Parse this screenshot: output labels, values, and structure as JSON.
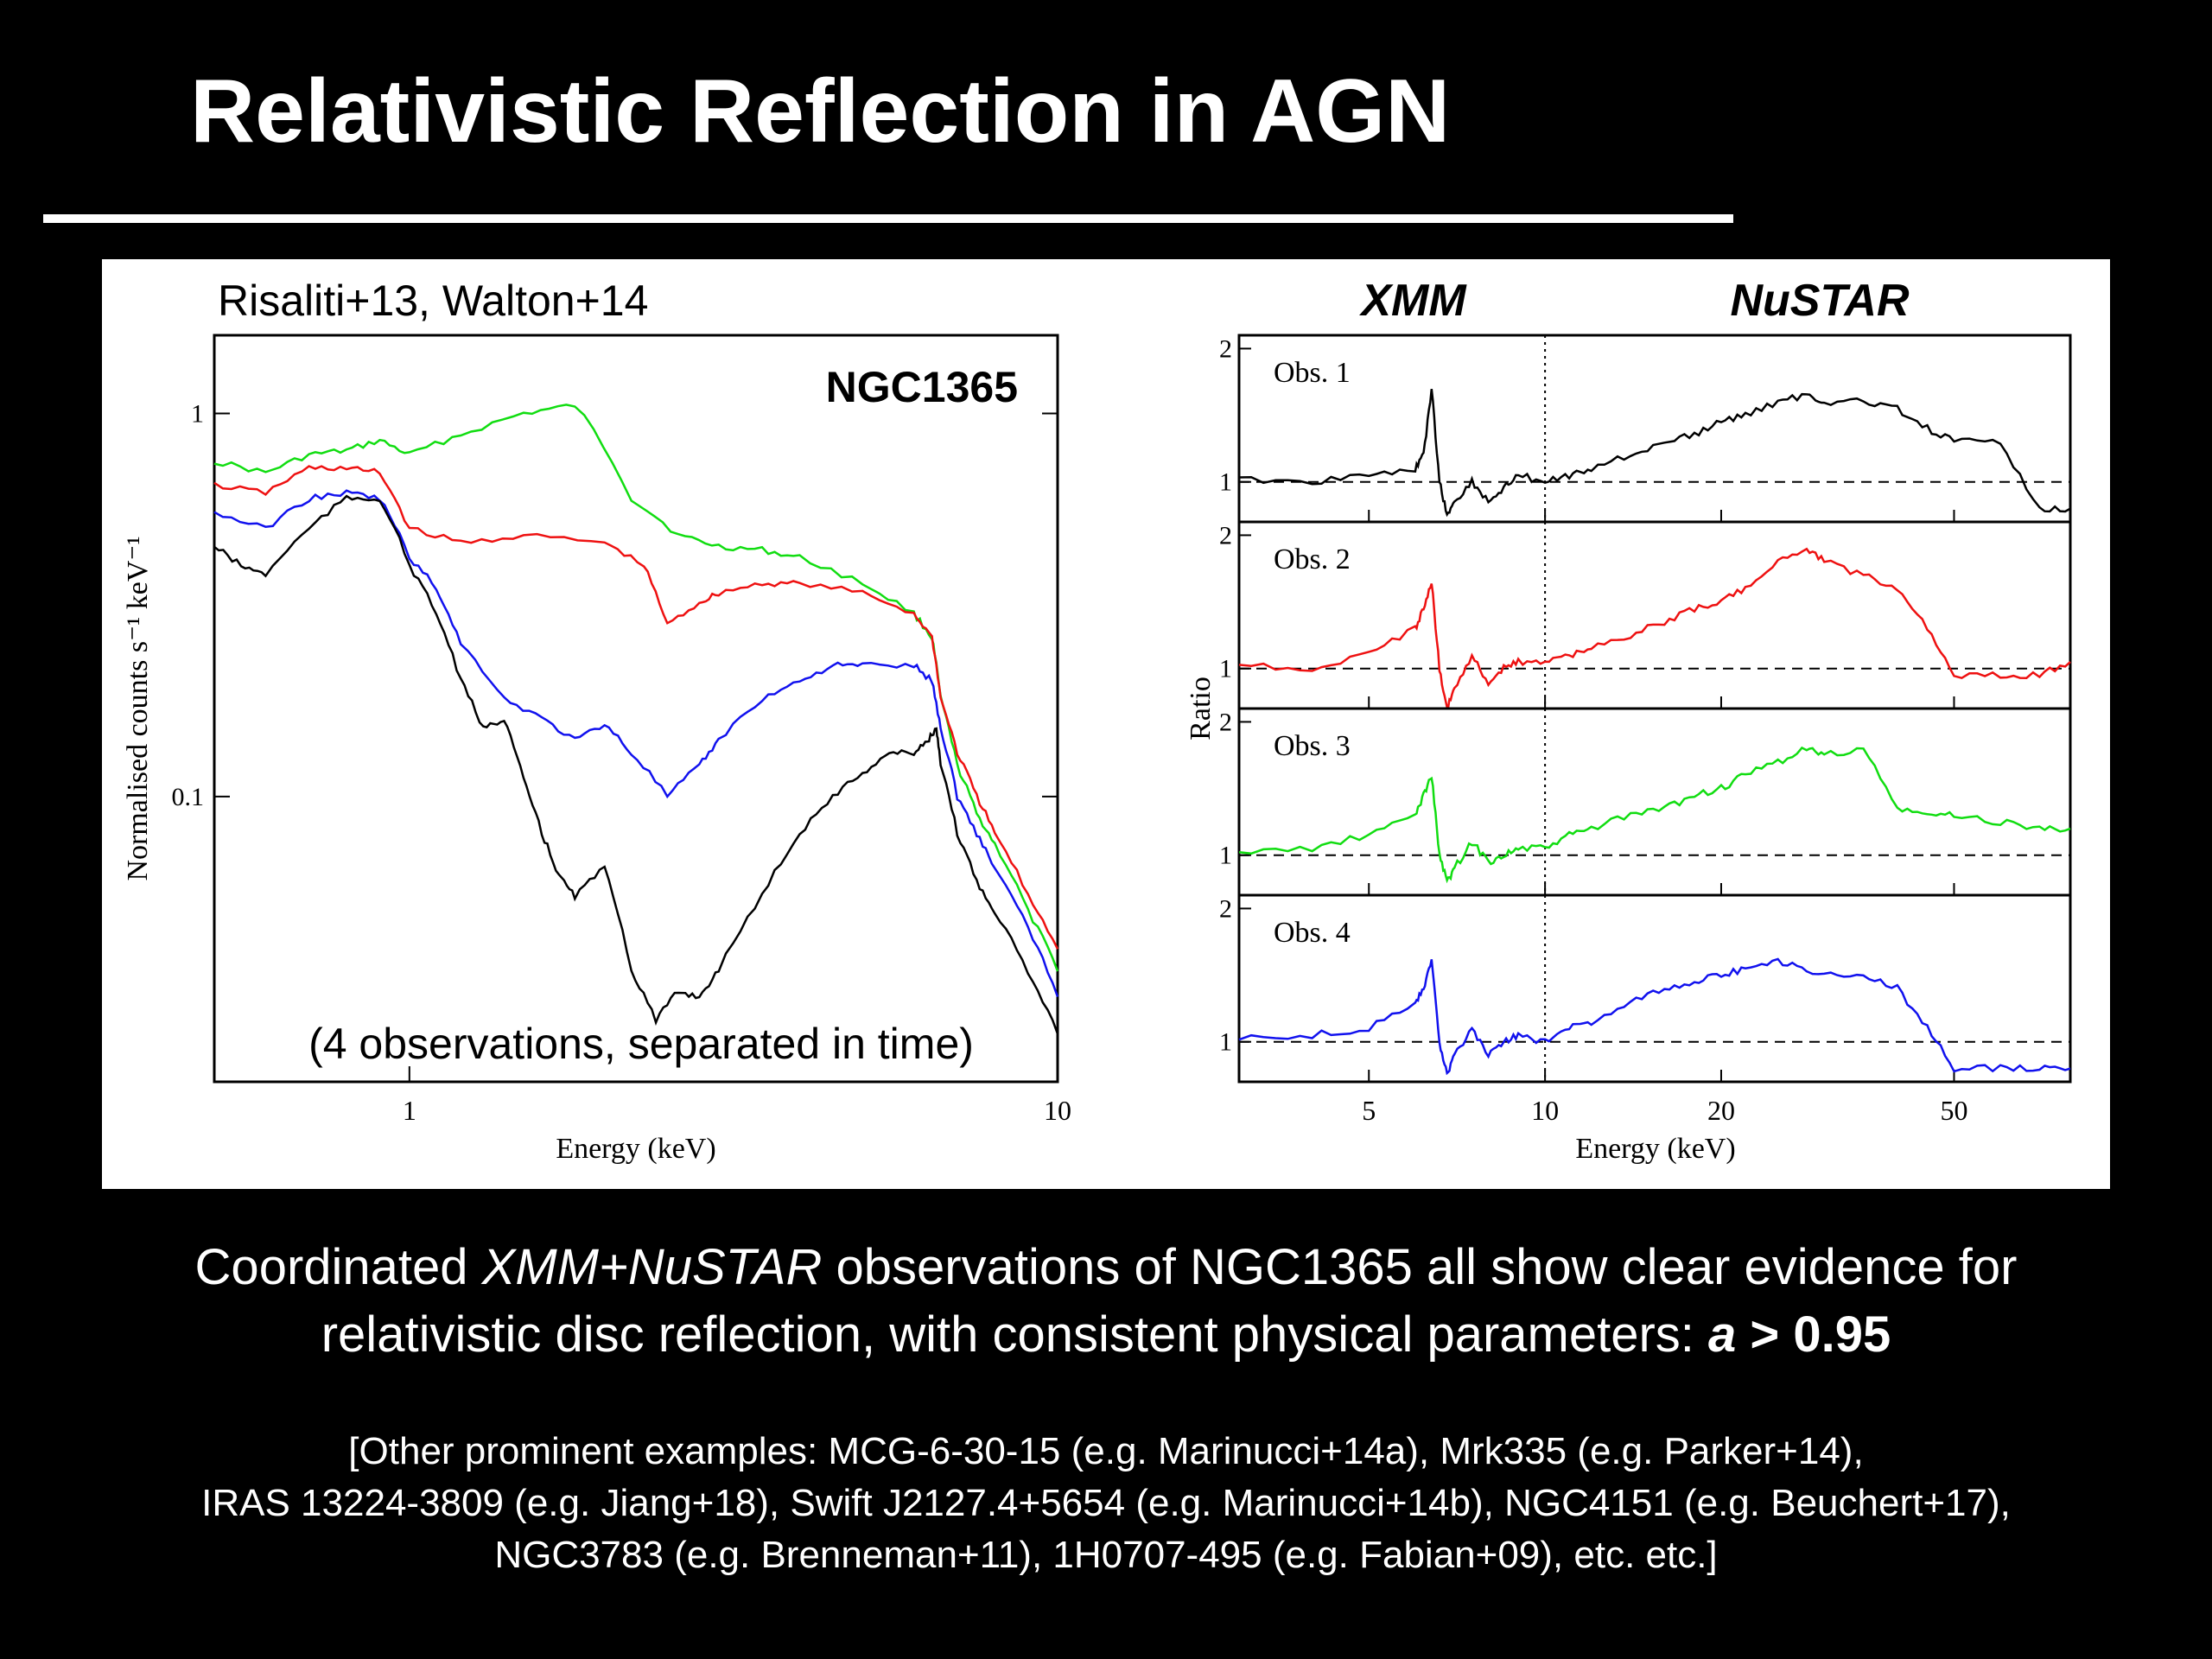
{
  "slide": {
    "title": "Relativistic Reflection in AGN",
    "caption": {
      "line1_pre": "Coordinated ",
      "line1_em": "XMM+NuSTAR",
      "line1_post": " observations of NGC1365 all show clear evidence for",
      "line2_pre": "relativistic disc reflection, with consistent physical parameters: ",
      "line2_em": "a",
      "line2_post": " > 0.95"
    },
    "footnote": [
      "[Other prominent examples: MCG-6-30-15 (e.g. Marinucci+14a), Mrk335 (e.g. Parker+14),",
      "IRAS 13224-3809 (e.g. Jiang+18), Swift J2127.4+5654 (e.g. Marinucci+14b), NGC4151 (e.g. Beuchert+17),",
      "NGC3783 (e.g. Brenneman+11), 1H0707-495 (e.g. Fabian+09), etc. etc.]"
    ]
  },
  "colors": {
    "obs1": "#000000",
    "obs2": "#ee1111",
    "obs3": "#11dd11",
    "obs4": "#1111ee"
  },
  "chart_data": [
    {
      "type": "line",
      "citation": "Risaliti+13, Walton+14",
      "title": "NGC1365",
      "annotation": "(4 observations, separated in time)",
      "xlabel": "Energy (keV)",
      "ylabel": "Normalised counts s⁻¹ keV⁻¹",
      "xscale": "log",
      "yscale": "log",
      "xlim": [
        0.5,
        10
      ],
      "ylim": [
        0.018,
        1.6
      ],
      "xticks": [
        {
          "value": 1,
          "label": "1"
        },
        {
          "value": 10,
          "label": "10"
        }
      ],
      "yticks": [
        {
          "value": 0.1,
          "label": "0.1"
        },
        {
          "value": 1,
          "label": "1"
        }
      ],
      "grid": false,
      "series": [
        {
          "color_key": "obs3",
          "x": [
            0.5,
            0.6,
            0.7,
            0.8,
            0.9,
            1.0,
            1.2,
            1.5,
            1.8,
            2.2,
            2.6,
            3.0,
            3.5,
            4.0,
            5.0,
            6.0,
            6.4,
            6.6,
            7.0,
            7.5,
            8,
            9,
            10
          ],
          "y": [
            0.75,
            0.7,
            0.78,
            0.8,
            0.85,
            0.78,
            0.88,
            1.0,
            1.05,
            0.6,
            0.48,
            0.45,
            0.44,
            0.42,
            0.36,
            0.3,
            0.26,
            0.18,
            0.12,
            0.09,
            0.075,
            0.05,
            0.035
          ]
        },
        {
          "color_key": "obs2",
          "x": [
            0.5,
            0.6,
            0.7,
            0.8,
            0.9,
            1.0,
            1.2,
            1.5,
            2.0,
            2.3,
            2.5,
            2.8,
            3.0,
            3.5,
            4.0,
            5.0,
            6.0,
            6.4,
            6.6,
            7.0,
            7.5,
            8,
            9,
            10
          ],
          "y": [
            0.65,
            0.62,
            0.72,
            0.72,
            0.7,
            0.5,
            0.46,
            0.48,
            0.46,
            0.4,
            0.28,
            0.32,
            0.34,
            0.36,
            0.36,
            0.34,
            0.3,
            0.26,
            0.18,
            0.13,
            0.1,
            0.08,
            0.055,
            0.04
          ]
        },
        {
          "color_key": "obs4",
          "x": [
            0.5,
            0.6,
            0.7,
            0.8,
            0.9,
            1.0,
            1.1,
            1.2,
            1.4,
            1.6,
            1.8,
            2.0,
            2.2,
            2.5,
            2.8,
            3.0,
            3.5,
            4.0,
            4.5,
            5.0,
            6.0,
            6.4,
            6.6,
            7.0,
            7.5,
            8,
            9,
            10
          ],
          "y": [
            0.55,
            0.5,
            0.6,
            0.62,
            0.6,
            0.42,
            0.35,
            0.25,
            0.18,
            0.16,
            0.14,
            0.155,
            0.13,
            0.1,
            0.12,
            0.14,
            0.18,
            0.2,
            0.22,
            0.22,
            0.22,
            0.2,
            0.15,
            0.1,
            0.08,
            0.065,
            0.045,
            0.03
          ]
        },
        {
          "color_key": "obs1",
          "x": [
            0.5,
            0.55,
            0.6,
            0.7,
            0.8,
            0.9,
            1.0,
            1.1,
            1.2,
            1.3,
            1.4,
            1.5,
            1.6,
            1.7,
            1.8,
            2.0,
            2.2,
            2.4,
            2.6,
            2.8,
            3.0,
            3.5,
            4.0,
            4.5,
            5.0,
            5.5,
            6.0,
            6.3,
            6.5,
            6.6,
            7.0,
            7.5,
            8.0,
            9.0,
            10.0
          ],
          "y": [
            0.45,
            0.4,
            0.38,
            0.5,
            0.6,
            0.6,
            0.4,
            0.3,
            0.2,
            0.15,
            0.16,
            0.11,
            0.08,
            0.062,
            0.055,
            0.065,
            0.035,
            0.026,
            0.031,
            0.03,
            0.035,
            0.055,
            0.08,
            0.1,
            0.115,
            0.13,
            0.13,
            0.14,
            0.15,
            0.12,
            0.08,
            0.06,
            0.05,
            0.035,
            0.024
          ]
        }
      ]
    },
    {
      "type": "line",
      "header_left": "XMM",
      "header_right": "NuSTAR",
      "xlabel": "Energy (keV)",
      "ylabel": "Ratio",
      "xscale": "log",
      "xlim": [
        3,
        79
      ],
      "xticks": [
        {
          "value": 5,
          "label": "5"
        },
        {
          "value": 10,
          "label": "10"
        },
        {
          "value": 20,
          "label": "20"
        },
        {
          "value": 50,
          "label": "50"
        }
      ],
      "xmm_nustar_divider": 10,
      "reference_line": 1,
      "ylim": [
        0.7,
        2.1
      ],
      "yticks": [
        {
          "value": 1,
          "label": "1"
        },
        {
          "value": 2,
          "label": "2"
        }
      ],
      "grid": false,
      "panels": [
        {
          "label": "Obs. 1",
          "color_key": "obs1",
          "x": [
            3,
            4,
            5,
            6,
            6.2,
            6.4,
            6.6,
            6.8,
            7.0,
            7.5,
            8,
            8.5,
            9,
            10,
            11,
            12,
            14,
            16,
            18,
            20,
            22,
            25,
            28,
            30,
            35,
            40,
            45,
            50,
            60,
            70,
            79
          ],
          "y": [
            1.02,
            1.0,
            1.05,
            1.1,
            1.2,
            1.7,
            1.0,
            0.75,
            0.85,
            1.0,
            0.85,
            0.95,
            1.05,
            1.0,
            1.05,
            1.1,
            1.2,
            1.3,
            1.35,
            1.45,
            1.5,
            1.6,
            1.65,
            1.6,
            1.6,
            1.55,
            1.4,
            1.3,
            1.3,
            0.8,
            0.8
          ]
        },
        {
          "label": "Obs. 2",
          "color_key": "obs2",
          "x": [
            3,
            4,
            5,
            6,
            6.2,
            6.4,
            6.6,
            6.8,
            7.0,
            7.5,
            8,
            8.5,
            9,
            10,
            11,
            12,
            14,
            16,
            18,
            20,
            22,
            25,
            28,
            30,
            35,
            40,
            45,
            50,
            60,
            70,
            79
          ],
          "y": [
            1.02,
            1.0,
            1.1,
            1.3,
            1.45,
            1.65,
            1.0,
            0.7,
            0.85,
            1.1,
            0.9,
            1.0,
            1.05,
            1.05,
            1.1,
            1.15,
            1.25,
            1.35,
            1.45,
            1.5,
            1.6,
            1.8,
            1.9,
            1.8,
            1.7,
            1.6,
            1.3,
            0.95,
            0.95,
            0.95,
            1.05
          ]
        },
        {
          "label": "Obs. 3",
          "color_key": "obs3",
          "x": [
            3,
            4,
            5,
            6,
            6.2,
            6.4,
            6.6,
            6.8,
            7.0,
            7.5,
            8,
            8.5,
            9,
            10,
            11,
            12,
            14,
            16,
            18,
            20,
            22,
            25,
            28,
            30,
            35,
            40,
            45,
            50,
            60,
            70,
            79
          ],
          "y": [
            1.02,
            1.05,
            1.15,
            1.3,
            1.45,
            1.6,
            1.0,
            0.8,
            0.9,
            1.1,
            0.95,
            1.0,
            1.05,
            1.05,
            1.15,
            1.2,
            1.3,
            1.35,
            1.45,
            1.5,
            1.6,
            1.7,
            1.8,
            1.75,
            1.8,
            1.35,
            1.3,
            1.3,
            1.25,
            1.2,
            1.2
          ]
        },
        {
          "label": "Obs. 4",
          "color_key": "obs4",
          "x": [
            3,
            4,
            5,
            6,
            6.2,
            6.4,
            6.6,
            6.8,
            7.0,
            7.5,
            8,
            8.5,
            9,
            10,
            11,
            12,
            14,
            16,
            18,
            20,
            22,
            25,
            28,
            30,
            35,
            40,
            45,
            50,
            60,
            70,
            79
          ],
          "y": [
            1.02,
            1.05,
            1.1,
            1.3,
            1.4,
            1.6,
            1.0,
            0.75,
            0.9,
            1.1,
            0.9,
            1.0,
            1.05,
            1.0,
            1.1,
            1.15,
            1.3,
            1.4,
            1.45,
            1.5,
            1.55,
            1.6,
            1.55,
            1.5,
            1.5,
            1.4,
            1.1,
            0.8,
            0.8,
            0.8,
            0.8
          ]
        }
      ]
    }
  ]
}
